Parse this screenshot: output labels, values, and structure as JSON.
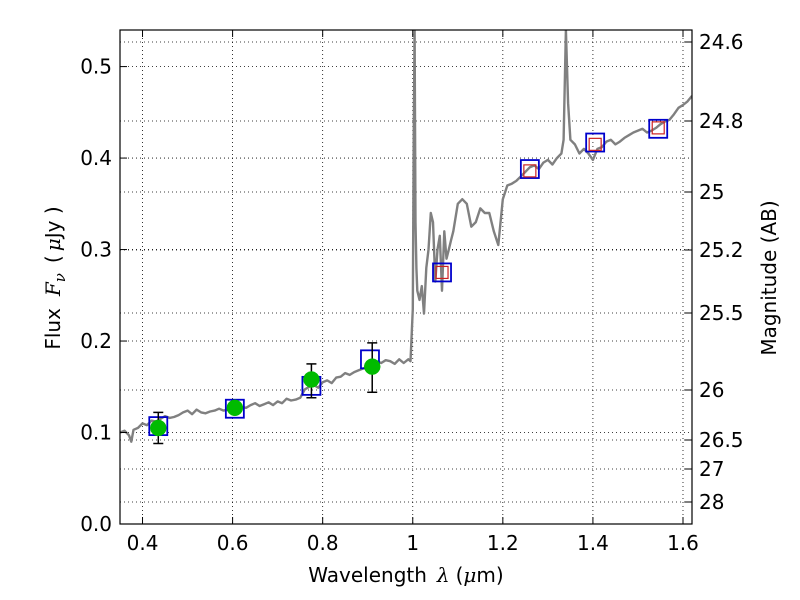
{
  "chart_data": {
    "type": "line",
    "title": "",
    "xlabel": "Wavelength",
    "xlabel_symbol": "λ",
    "xlabel_unit_open": "(",
    "xlabel_unit_mu": "μ",
    "xlabel_unit_rest": "m)",
    "ylabel": "Flux",
    "ylabel_symbol": "F",
    "ylabel_subscript": "ν",
    "ylabel_unit_open": "(",
    "ylabel_unit_mu": "μ",
    "ylabel_unit_rest": "Jy )",
    "y2label": "Magnitude (AB)",
    "xlim": [
      0.35,
      1.62
    ],
    "ylim": [
      0.0,
      0.54
    ],
    "grid": true,
    "xticks": [
      {
        "value": 0.4,
        "label": "0.4"
      },
      {
        "value": 0.6,
        "label": "0.6"
      },
      {
        "value": 0.8,
        "label": "0.8"
      },
      {
        "value": 1.0,
        "label": "1"
      },
      {
        "value": 1.2,
        "label": "1.2"
      },
      {
        "value": 1.4,
        "label": "1.4"
      },
      {
        "value": 1.6,
        "label": "1.6"
      }
    ],
    "yticks": [
      {
        "value": 0.0,
        "label": "0.0"
      },
      {
        "value": 0.1,
        "label": "0.1"
      },
      {
        "value": 0.2,
        "label": "0.2"
      },
      {
        "value": 0.3,
        "label": "0.3"
      },
      {
        "value": 0.4,
        "label": "0.4"
      },
      {
        "value": 0.5,
        "label": "0.5"
      }
    ],
    "y2ticks": [
      {
        "label": "24.6"
      },
      {
        "label": "24.8"
      },
      {
        "label": "25"
      },
      {
        "label": "25.2"
      },
      {
        "label": "25.5"
      },
      {
        "label": "26"
      },
      {
        "label": "26.5"
      },
      {
        "label": "27"
      },
      {
        "label": "28"
      }
    ],
    "colors": {
      "spectrum": "#808080",
      "photometry": "#00bb00",
      "model_box": "#0000cc",
      "model_box_red": "#cc2222",
      "errorbar": "#000000"
    },
    "spectrum": {
      "name": "",
      "x": [
        0.35,
        0.36,
        0.37,
        0.375,
        0.38,
        0.39,
        0.4,
        0.41,
        0.42,
        0.43,
        0.44,
        0.45,
        0.46,
        0.47,
        0.48,
        0.49,
        0.5,
        0.51,
        0.52,
        0.53,
        0.54,
        0.55,
        0.56,
        0.57,
        0.58,
        0.59,
        0.6,
        0.61,
        0.62,
        0.63,
        0.64,
        0.65,
        0.66,
        0.67,
        0.68,
        0.69,
        0.7,
        0.71,
        0.72,
        0.73,
        0.74,
        0.75,
        0.76,
        0.77,
        0.78,
        0.79,
        0.8,
        0.81,
        0.82,
        0.83,
        0.84,
        0.85,
        0.86,
        0.87,
        0.88,
        0.89,
        0.9,
        0.91,
        0.92,
        0.93,
        0.94,
        0.95,
        0.96,
        0.97,
        0.98,
        0.99,
        0.995,
        1.0,
        1.002,
        1.004,
        1.006,
        1.008,
        1.01,
        1.015,
        1.02,
        1.025,
        1.03,
        1.035,
        1.04,
        1.045,
        1.05,
        1.055,
        1.06,
        1.065,
        1.07,
        1.075,
        1.08,
        1.085,
        1.09,
        1.1,
        1.11,
        1.12,
        1.13,
        1.14,
        1.15,
        1.16,
        1.17,
        1.18,
        1.19,
        1.2,
        1.21,
        1.22,
        1.23,
        1.24,
        1.25,
        1.26,
        1.27,
        1.28,
        1.29,
        1.3,
        1.31,
        1.32,
        1.33,
        1.335,
        1.34,
        1.345,
        1.35,
        1.36,
        1.37,
        1.38,
        1.39,
        1.4,
        1.41,
        1.42,
        1.43,
        1.44,
        1.45,
        1.46,
        1.47,
        1.48,
        1.49,
        1.5,
        1.51,
        1.52,
        1.53,
        1.54,
        1.55,
        1.56,
        1.57,
        1.58,
        1.59,
        1.6,
        1.61,
        1.62
      ],
      "y": [
        0.1,
        0.102,
        0.097,
        0.09,
        0.103,
        0.105,
        0.11,
        0.108,
        0.113,
        0.112,
        0.115,
        0.118,
        0.116,
        0.117,
        0.119,
        0.122,
        0.124,
        0.12,
        0.125,
        0.122,
        0.121,
        0.123,
        0.124,
        0.126,
        0.124,
        0.125,
        0.123,
        0.126,
        0.128,
        0.127,
        0.13,
        0.132,
        0.129,
        0.131,
        0.133,
        0.13,
        0.134,
        0.132,
        0.137,
        0.135,
        0.136,
        0.138,
        0.147,
        0.15,
        0.152,
        0.149,
        0.155,
        0.157,
        0.154,
        0.16,
        0.161,
        0.165,
        0.163,
        0.166,
        0.168,
        0.17,
        0.172,
        0.175,
        0.178,
        0.176,
        0.179,
        0.178,
        0.175,
        0.18,
        0.176,
        0.18,
        0.178,
        0.235,
        0.42,
        0.54,
        0.33,
        0.28,
        0.255,
        0.245,
        0.26,
        0.23,
        0.28,
        0.3,
        0.34,
        0.33,
        0.265,
        0.3,
        0.315,
        0.255,
        0.32,
        0.29,
        0.3,
        0.31,
        0.32,
        0.35,
        0.355,
        0.35,
        0.325,
        0.33,
        0.345,
        0.34,
        0.34,
        0.32,
        0.305,
        0.355,
        0.37,
        0.372,
        0.375,
        0.38,
        0.385,
        0.39,
        0.392,
        0.388,
        0.395,
        0.398,
        0.393,
        0.4,
        0.405,
        0.42,
        0.54,
        0.46,
        0.42,
        0.415,
        0.405,
        0.41,
        0.405,
        0.398,
        0.41,
        0.412,
        0.418,
        0.42,
        0.415,
        0.418,
        0.422,
        0.425,
        0.428,
        0.43,
        0.432,
        0.428,
        0.43,
        0.433,
        0.437,
        0.44,
        0.442,
        0.448,
        0.455,
        0.458,
        0.462,
        0.468
      ]
    },
    "photometry": {
      "name": "",
      "x": [
        0.435,
        0.605,
        0.775,
        0.91
      ],
      "y": [
        0.105,
        0.127,
        0.158,
        0.172
      ],
      "yerr_low": [
        0.017,
        0.004,
        0.02,
        0.028
      ],
      "yerr_high": [
        0.017,
        0.004,
        0.017,
        0.026
      ]
    },
    "model_boxes": {
      "name": "",
      "x": [
        0.435,
        0.605,
        0.775,
        0.905,
        1.065,
        1.26,
        1.405,
        1.545
      ],
      "y": [
        0.107,
        0.126,
        0.151,
        0.18,
        0.275,
        0.388,
        0.417,
        0.432
      ]
    },
    "model_boxes_red": {
      "name": "",
      "x": [
        1.065,
        1.26,
        1.405,
        1.545
      ],
      "y": [
        0.275,
        0.386,
        0.415,
        0.433
      ]
    }
  }
}
